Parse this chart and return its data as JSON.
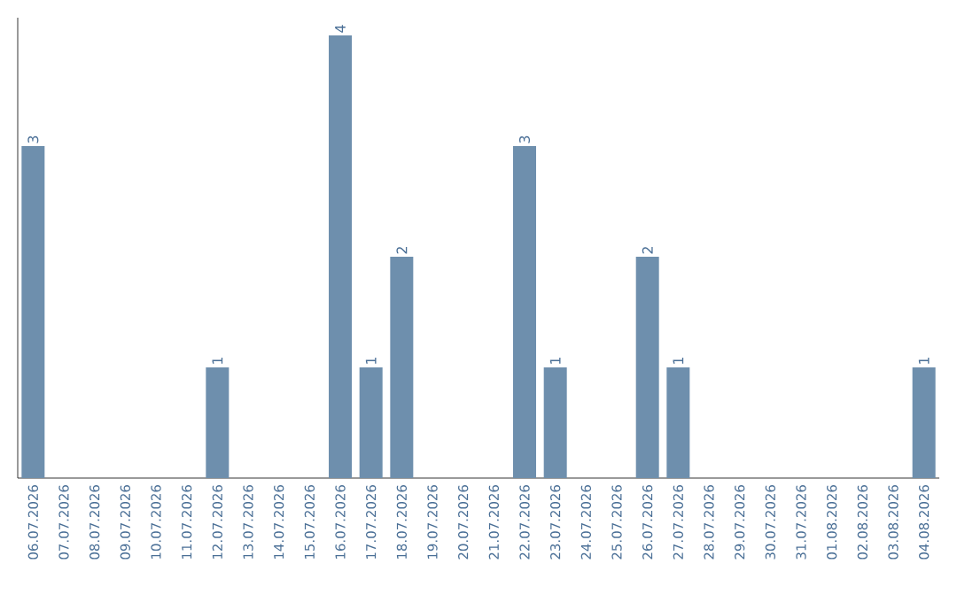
{
  "chart_data": {
    "type": "bar",
    "categories": [
      "06.07.2026",
      "07.07.2026",
      "08.07.2026",
      "09.07.2026",
      "10.07.2026",
      "11.07.2026",
      "12.07.2026",
      "13.07.2026",
      "14.07.2026",
      "15.07.2026",
      "16.07.2026",
      "17.07.2026",
      "18.07.2026",
      "19.07.2026",
      "20.07.2026",
      "21.07.2026",
      "22.07.2026",
      "23.07.2026",
      "24.07.2026",
      "25.07.2026",
      "26.07.2026",
      "27.07.2026",
      "28.07.2026",
      "29.07.2026",
      "30.07.2026",
      "31.07.2026",
      "01.08.2026",
      "02.08.2026",
      "03.08.2026",
      "04.08.2026"
    ],
    "values": [
      3,
      0,
      0,
      0,
      0,
      0,
      1,
      0,
      0,
      0,
      4,
      1,
      2,
      0,
      0,
      0,
      3,
      1,
      0,
      0,
      2,
      1,
      0,
      0,
      0,
      0,
      0,
      0,
      0,
      1
    ],
    "value_labels": [
      "3",
      null,
      null,
      null,
      null,
      null,
      "1",
      null,
      null,
      null,
      "4",
      "1",
      "2",
      null,
      null,
      null,
      "3",
      "1",
      null,
      null,
      "2",
      "1",
      null,
      null,
      null,
      null,
      null,
      null,
      null,
      "1"
    ],
    "color": "#6e8fad",
    "tick_labels": "x"
  }
}
